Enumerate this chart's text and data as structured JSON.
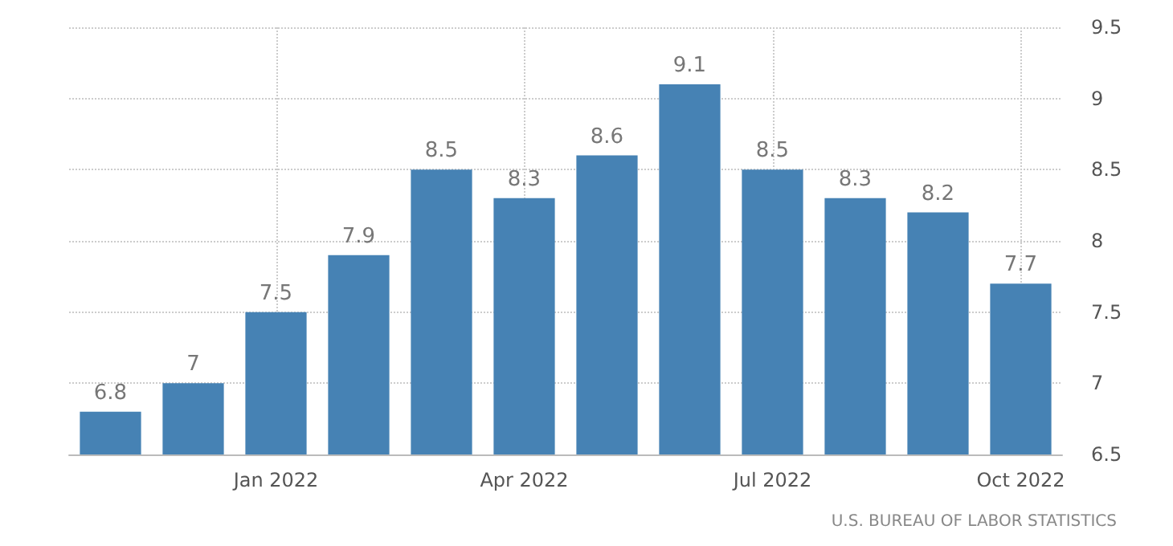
{
  "chart_data": {
    "type": "bar",
    "categories": [
      null,
      null,
      "Jan 2022",
      null,
      null,
      "Apr 2022",
      null,
      null,
      "Jul 2022",
      null,
      null,
      "Oct 2022"
    ],
    "values": [
      6.8,
      7,
      7.5,
      7.9,
      8.5,
      8.3,
      8.6,
      9.1,
      8.5,
      8.3,
      8.2,
      7.7
    ],
    "color": "#4682b4",
    "ylim": [
      6.5,
      9.5
    ],
    "yticks": [
      6.5,
      7,
      7.5,
      8,
      8.5,
      9,
      9.5
    ],
    "grid": true,
    "data_labels": true,
    "annotations": [
      "U.S. BUREAU OF LABOR STATISTICS"
    ]
  }
}
